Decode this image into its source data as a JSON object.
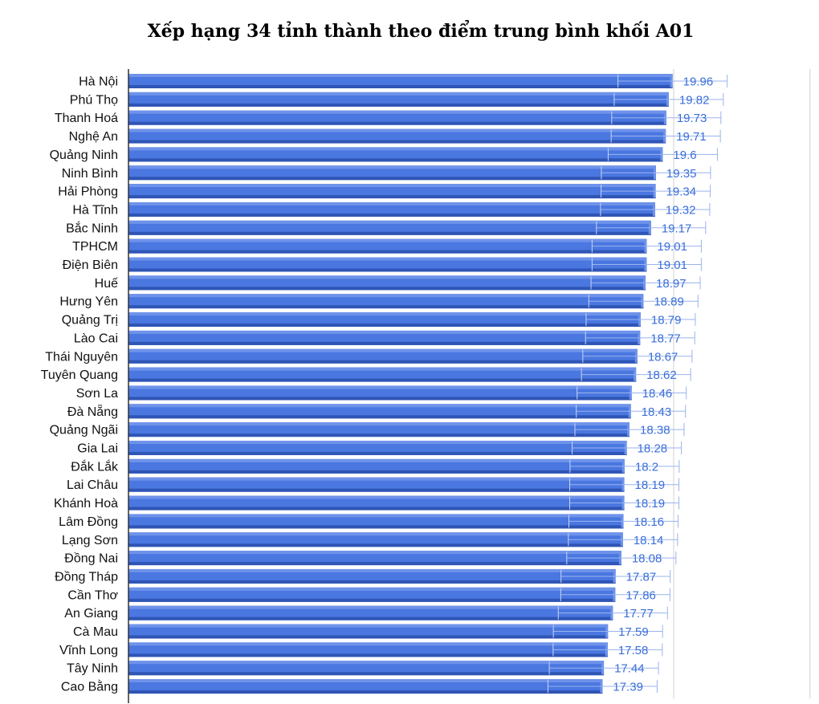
{
  "chart_data": {
    "type": "bar",
    "orientation": "horizontal",
    "title": "Xếp hạng 34 tỉnh thành theo điểm trung bình khối A01",
    "categories": [
      "Hà Nội",
      "Phú Thọ",
      "Thanh Hoá",
      "Nghệ An",
      "Quảng Ninh",
      "Ninh Bình",
      "Hải Phòng",
      "Hà Tĩnh",
      "Bắc Ninh",
      "TPHCM",
      "Điện Biên",
      "Huế",
      "Hưng Yên",
      "Quảng Trị",
      "Lào Cai",
      "Thái Nguyên",
      "Tuyên Quang",
      "Sơn La",
      "Đà Nẵng",
      "Quảng Ngãi",
      "Gia Lai",
      "Đắk Lắk",
      "Lai Châu",
      "Khánh Hoà",
      "Lâm Đồng",
      "Lạng Sơn",
      "Đồng Nai",
      "Đồng Tháp",
      "Cần Thơ",
      "An Giang",
      "Cà Mau",
      "Vĩnh Long",
      "Tây Ninh",
      "Cao Bằng"
    ],
    "values": [
      19.96,
      19.82,
      19.73,
      19.71,
      19.6,
      19.35,
      19.34,
      19.32,
      19.17,
      19.01,
      19.01,
      18.97,
      18.89,
      18.79,
      18.77,
      18.67,
      18.62,
      18.46,
      18.43,
      18.38,
      18.28,
      18.2,
      18.19,
      18.19,
      18.16,
      18.14,
      18.08,
      17.87,
      17.86,
      17.77,
      17.59,
      17.58,
      17.44,
      17.39
    ],
    "value_labels": [
      "19.96",
      "19.82",
      "19.73",
      "19.71",
      "19.6",
      "19.35",
      "19.34",
      "19.32",
      "19.17",
      "19.01",
      "19.01",
      "18.97",
      "18.89",
      "18.79",
      "18.77",
      "18.67",
      "18.62",
      "18.46",
      "18.43",
      "18.38",
      "18.28",
      "18.2",
      "18.19",
      "18.19",
      "18.16",
      "18.14",
      "18.08",
      "17.87",
      "17.86",
      "17.77",
      "17.59",
      "17.58",
      "17.44",
      "17.39"
    ],
    "xlim": [
      0,
      25
    ],
    "grid": true,
    "error_bars": true,
    "colors": {
      "bar": "#4a77e0",
      "bar_top": "#6f93ea",
      "bar_bottom": "#2f55b5",
      "value_label": "#3a6fd8",
      "gridline": "#d0d0d0",
      "axis": "#333333"
    }
  }
}
